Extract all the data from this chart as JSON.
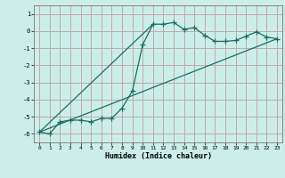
{
  "xlabel": "Humidex (Indice chaleur)",
  "background_color": "#cceee8",
  "grid_color": "#c0aaaa",
  "line_color": "#1a6e64",
  "xlim": [
    -0.5,
    23.5
  ],
  "ylim": [
    -6.5,
    1.5
  ],
  "yticks": [
    1,
    0,
    -1,
    -2,
    -3,
    -4,
    -5,
    -6
  ],
  "xticks": [
    0,
    1,
    2,
    3,
    4,
    5,
    6,
    7,
    8,
    9,
    10,
    11,
    12,
    13,
    14,
    15,
    16,
    17,
    18,
    19,
    20,
    21,
    22,
    23
  ],
  "line1_x": [
    0,
    1,
    2,
    3,
    4,
    5,
    6,
    7,
    8,
    9,
    10,
    11,
    12,
    13,
    14,
    15,
    16,
    17,
    18,
    19,
    20,
    21,
    22,
    23
  ],
  "line1_y": [
    -5.9,
    -6.0,
    -5.3,
    -5.2,
    -5.2,
    -5.3,
    -5.1,
    -5.1,
    -4.5,
    -3.5,
    -0.8,
    0.4,
    0.4,
    0.5,
    0.1,
    0.2,
    -0.25,
    -0.6,
    -0.6,
    -0.55,
    -0.3,
    -0.05,
    -0.35,
    -0.45
  ],
  "line2_x": [
    0,
    23
  ],
  "line2_y": [
    -5.9,
    -0.45
  ],
  "line3_x": [
    0,
    11
  ],
  "line3_y": [
    -5.9,
    0.4
  ]
}
